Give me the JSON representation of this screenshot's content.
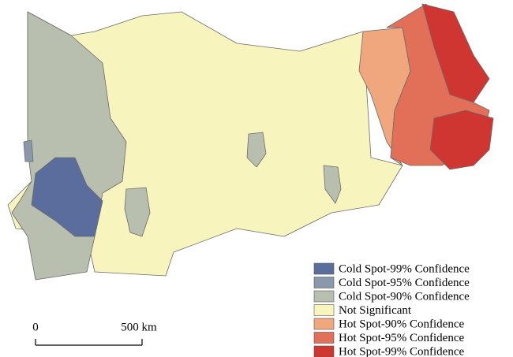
{
  "legend": {
    "items": [
      {
        "label": "Cold Spot-99% Confidence",
        "color": "#5b6d9c"
      },
      {
        "label": "Cold Spot-95% Confidence",
        "color": "#8b98ab"
      },
      {
        "label": "Cold Spot-90% Confidence",
        "color": "#b9bfae"
      },
      {
        "label": "Not Significant",
        "color": "#f8f4bd"
      },
      {
        "label": "Hot Spot-90% Confidence",
        "color": "#f0a77e"
      },
      {
        "label": "Hot Spot-95% Confidence",
        "color": "#e27059"
      },
      {
        "label": "Hot Spot-99% Confidence",
        "color": "#cf3631"
      }
    ]
  },
  "scale_bar": {
    "start_label": "0",
    "end_label": "500 km"
  }
}
